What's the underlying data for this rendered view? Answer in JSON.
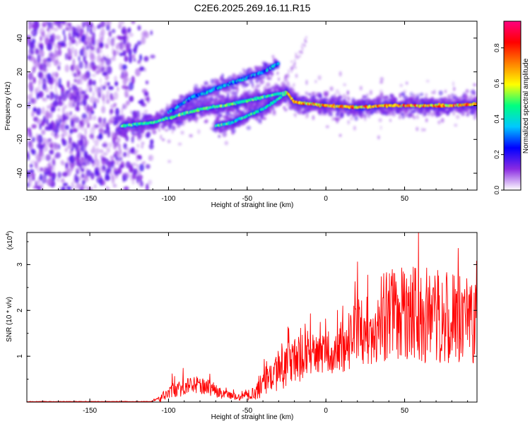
{
  "page_title": "C2E6.2025.269.16.11.R15",
  "chart_data": [
    {
      "type": "heatmap",
      "title": "C2E6.2025.269.16.11.R15",
      "xlabel": "Height of straight line (km)",
      "ylabel": "Frequency (Hz)",
      "xlim": [
        -190,
        96
      ],
      "ylim": [
        -50,
        50
      ],
      "xticks": [
        -150,
        -100,
        -50,
        0,
        50
      ],
      "yticks": [
        -40,
        -20,
        0,
        20,
        40
      ],
      "colorbar": {
        "label": "Normalized spectral amplitude",
        "range": [
          0,
          0.95
        ],
        "ticks": [
          "0.0",
          "0.2",
          "0.4",
          "0.6",
          "0.8"
        ],
        "tick_values": [
          0,
          0.2,
          0.4,
          0.6,
          0.8
        ],
        "colors": [
          "#ffffff",
          "#8a2be2",
          "#0000ff",
          "#00c8ff",
          "#00ff80",
          "#ffff00",
          "#ff8000",
          "#ff0000",
          "#ff0080"
        ]
      },
      "features": [
        {
          "name": "noise-region",
          "x_range": [
            -190,
            -122
          ],
          "y_range": [
            -50,
            50
          ]
        },
        {
          "name": "main-trace",
          "points": [
            [
              -130,
              -12
            ],
            [
              -110,
              -10
            ],
            [
              -95,
              -6
            ],
            [
              -80,
              -2
            ],
            [
              -65,
              0
            ],
            [
              -50,
              3
            ],
            [
              -35,
              6
            ],
            [
              -25,
              8
            ],
            [
              -20,
              2
            ],
            [
              0,
              0
            ],
            [
              20,
              -1
            ],
            [
              40,
              0
            ],
            [
              60,
              0
            ],
            [
              80,
              0
            ],
            [
              96,
              1
            ]
          ]
        },
        {
          "name": "upper-trace",
          "points": [
            [
              -100,
              -4
            ],
            [
              -85,
              5
            ],
            [
              -70,
              10
            ],
            [
              -55,
              15
            ],
            [
              -40,
              20
            ],
            [
              -30,
              25
            ]
          ]
        },
        {
          "name": "lower-trace",
          "points": [
            [
              -70,
              -12
            ],
            [
              -60,
              -10
            ],
            [
              -50,
              -6
            ],
            [
              -40,
              -2
            ],
            [
              -30,
              4
            ],
            [
              -25,
              8
            ]
          ]
        }
      ]
    },
    {
      "type": "line",
      "xlabel": "Height of straight line (km)",
      "ylabel": "SNR (10 * v/v)",
      "y_multiplier": "(x10^4)",
      "xlim": [
        -190,
        96
      ],
      "ylim": [
        0,
        3.7
      ],
      "xticks": [
        -150,
        -100,
        -50,
        0,
        50
      ],
      "yticks": [
        1,
        2,
        3
      ],
      "color": "#ff0000",
      "envelope": [
        {
          "x": -190,
          "base": 0.01,
          "amp": 0.01
        },
        {
          "x": -112,
          "base": 0.01,
          "amp": 0.01
        },
        {
          "x": -105,
          "base": 0.05,
          "amp": 0.15
        },
        {
          "x": -100,
          "base": 0.15,
          "amp": 0.35
        },
        {
          "x": -85,
          "base": 0.3,
          "amp": 0.4
        },
        {
          "x": -75,
          "base": 0.25,
          "amp": 0.35
        },
        {
          "x": -65,
          "base": 0.12,
          "amp": 0.2
        },
        {
          "x": -55,
          "base": 0.08,
          "amp": 0.15
        },
        {
          "x": -45,
          "base": 0.12,
          "amp": 0.3
        },
        {
          "x": -38,
          "base": 0.35,
          "amp": 0.7
        },
        {
          "x": -25,
          "base": 0.6,
          "amp": 1.0
        },
        {
          "x": -12,
          "base": 0.8,
          "amp": 1.0
        },
        {
          "x": -5,
          "base": 0.9,
          "amp": 0.8
        },
        {
          "x": 5,
          "base": 0.9,
          "amp": 1.0
        },
        {
          "x": 20,
          "base": 1.2,
          "amp": 1.5
        },
        {
          "x": 40,
          "base": 1.5,
          "amp": 2.0
        },
        {
          "x": 60,
          "base": 1.5,
          "amp": 2.2
        },
        {
          "x": 80,
          "base": 1.4,
          "amp": 2.0
        },
        {
          "x": 96,
          "base": 1.4,
          "amp": 1.8
        }
      ]
    }
  ]
}
